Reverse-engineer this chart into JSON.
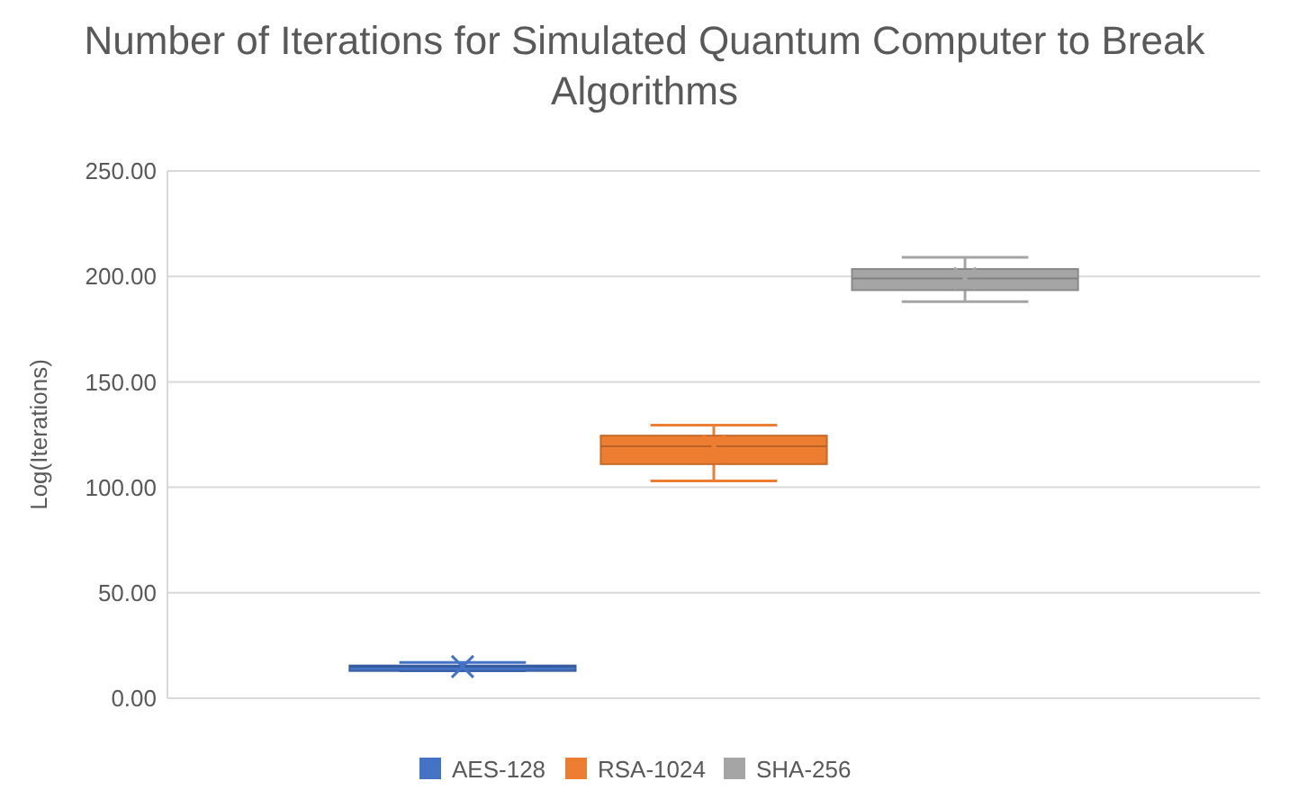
{
  "chart_data": {
    "type": "box",
    "title": "Number of Iterations for Simulated Quantum Computer to Break Algorithms",
    "ylabel": "Log(Iterations)",
    "categories": [
      null
    ],
    "series": [
      {
        "name": "AES-128",
        "color": "#4472c4",
        "boxes": [
          {
            "low": 13,
            "q1": 14,
            "median": 15,
            "q3": 15.5,
            "high": 17,
            "mean": 15
          }
        ]
      },
      {
        "name": "RSA-1024",
        "color": "#ed7d31",
        "boxes": [
          {
            "low": 103,
            "q1": 111,
            "median": 119.5,
            "q3": 124.5,
            "high": 129.5,
            "mean": 119.5
          }
        ]
      },
      {
        "name": "SHA-256",
        "color": "#a5a5a5",
        "boxes": [
          {
            "low": 188,
            "q1": 193.5,
            "median": 199,
            "q3": 203.5,
            "high": 209,
            "mean": 199
          }
        ]
      }
    ],
    "ylim": [
      0,
      250
    ],
    "yticks": [
      {
        "value": 0,
        "label": "0.00"
      },
      {
        "value": 50,
        "label": "50.00"
      },
      {
        "value": 100,
        "label": "100.00"
      },
      {
        "value": 150,
        "label": "150.00"
      },
      {
        "value": 200,
        "label": "200.00"
      },
      {
        "value": 250,
        "label": "250.00"
      }
    ],
    "grid": "y",
    "legend": "bottom",
    "marker": "cross"
  }
}
